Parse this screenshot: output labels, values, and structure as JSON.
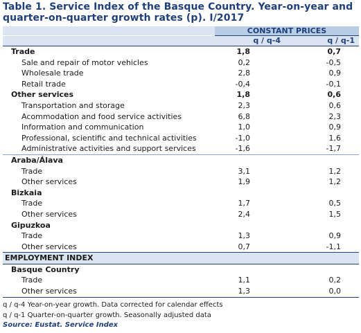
{
  "title": "Table 1. Service Index of the Basque Country. Year-on-year and quarter-on-quarter growth rates (p). I/2017",
  "header": {
    "group": "CONSTANT PRICES",
    "col1": "q / q-4",
    "col2": "q / q-1"
  },
  "rows": [
    {
      "type": "bold",
      "label": "Trade",
      "v1": "1,8",
      "v2": "0,7"
    },
    {
      "type": "sub",
      "label": "Sale and repair of motor vehicles",
      "v1": "0,2",
      "v2": "-0,5"
    },
    {
      "type": "sub",
      "label": "Wholesale trade",
      "v1": "2,8",
      "v2": "0,9"
    },
    {
      "type": "sub",
      "label": "Retail trade",
      "v1": "-0,4",
      "v2": "-0,1"
    },
    {
      "type": "bold",
      "label": "Other services",
      "v1": "1,8",
      "v2": "0,6"
    },
    {
      "type": "sub",
      "label": "Transportation and storage",
      "v1": "2,3",
      "v2": "0,6"
    },
    {
      "type": "sub",
      "label": "Acommodation and food service activities",
      "v1": "6,8",
      "v2": "2,3"
    },
    {
      "type": "sub",
      "label": "Information and communication",
      "v1": "1,0",
      "v2": "0,9"
    },
    {
      "type": "sub",
      "label": "Professional, scientific and technical activities",
      "v1": "-1,0",
      "v2": "1,6"
    },
    {
      "type": "sub",
      "label": "Administrative activities and support services",
      "v1": "-1,6",
      "v2": "-1,7"
    },
    {
      "type": "bold",
      "label": "Araba/Álava",
      "v1": "",
      "v2": "",
      "sep": true
    },
    {
      "type": "sub",
      "label": "Trade",
      "v1": "3,1",
      "v2": "1,2"
    },
    {
      "type": "sub",
      "label": "Other services",
      "v1": "1,9",
      "v2": "1,2"
    },
    {
      "type": "bold",
      "label": "Bizkaia",
      "v1": "",
      "v2": ""
    },
    {
      "type": "sub",
      "label": "Trade",
      "v1": "1,7",
      "v2": "0,5"
    },
    {
      "type": "sub",
      "label": "Other services",
      "v1": "2,4",
      "v2": "1,5"
    },
    {
      "type": "bold",
      "label": "Gipuzkoa",
      "v1": "",
      "v2": ""
    },
    {
      "type": "sub",
      "label": "Trade",
      "v1": "1,3",
      "v2": "0,9"
    },
    {
      "type": "sub",
      "label": "Other services",
      "v1": "0,7",
      "v2": "-1,1"
    },
    {
      "type": "empband",
      "label": "EMPLOYMENT INDEX",
      "v1": "",
      "v2": ""
    },
    {
      "type": "bold",
      "label": "Basque Country",
      "v1": "",
      "v2": ""
    },
    {
      "type": "sub",
      "label": "Trade",
      "v1": "1,1",
      "v2": "0,2"
    },
    {
      "type": "sub",
      "label": "Other services",
      "v1": "1,3",
      "v2": "0,0"
    }
  ],
  "footnotes": [
    "q / q-4 Year-on-year growth. Data corrected for calendar effects",
    "q / q-1 Quarter-on-quarter growth. Seasonally adjusted data"
  ],
  "source": "Source: Eustat. Service Index"
}
